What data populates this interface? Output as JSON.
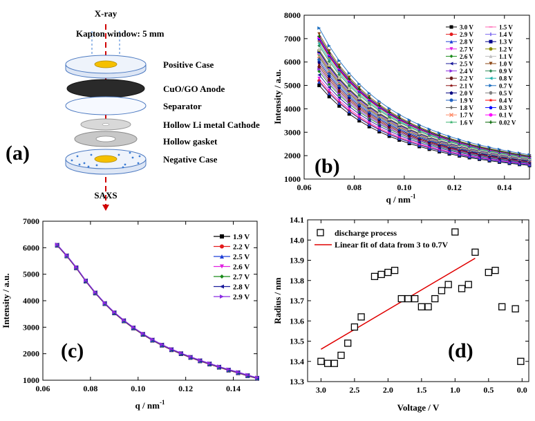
{
  "chart_data": [
    {
      "panel": "a",
      "type": "diagram",
      "panel_label": "(a)",
      "top_label": "X-ray",
      "window_label": "Kapton window: 5 mm",
      "bottom_label": "SAXS",
      "layers": [
        "Positive Case",
        "CuO/GO Anode",
        "Separator",
        "Hollow Li metal Cathode",
        "Hollow gasket",
        "Negative Case"
      ]
    },
    {
      "panel": "b",
      "type": "line",
      "panel_label": "(b)",
      "xlabel": "q / nm",
      "xlabel_sup": "-1",
      "ylabel": "Intensity / a.u.",
      "xlim": [
        0.06,
        0.15
      ],
      "ylim": [
        1000,
        8000
      ],
      "xticks": [
        0.06,
        0.08,
        0.1,
        0.12,
        0.14
      ],
      "xtick_labels": [
        "0.06",
        "0.08",
        "0.10",
        "0.12",
        "0.14"
      ],
      "yticks": [
        1000,
        2000,
        3000,
        4000,
        5000,
        6000,
        7000,
        8000
      ],
      "ytick_labels": [
        "1000",
        "2000",
        "3000",
        "4000",
        "5000",
        "6000",
        "7000",
        "8000"
      ],
      "x": [
        0.066,
        0.07,
        0.074,
        0.078,
        0.082,
        0.086,
        0.09,
        0.094,
        0.098,
        0.102,
        0.106,
        0.11,
        0.114,
        0.118,
        0.122,
        0.126,
        0.13,
        0.134,
        0.138,
        0.142,
        0.146,
        0.15
      ],
      "series": [
        {
          "name": "3.0 V",
          "i0": 5000,
          "color": "#000000",
          "marker": "square"
        },
        {
          "name": "2.9 V",
          "i0": 5200,
          "color": "#e41a1c",
          "marker": "circle"
        },
        {
          "name": "2.8 V",
          "i0": 5150,
          "color": "#1f3fd6",
          "marker": "triangle"
        },
        {
          "name": "2.7 V",
          "i0": 5300,
          "color": "#e020e0",
          "marker": "triangle-down"
        },
        {
          "name": "2.6 V",
          "i0": 5600,
          "color": "#1a8a1a",
          "marker": "diamond"
        },
        {
          "name": "2.5 V",
          "i0": 5450,
          "color": "#1a1a9a",
          "marker": "triangle-left"
        },
        {
          "name": "2.4 V",
          "i0": 5700,
          "color": "#8a2be2",
          "marker": "triangle-right"
        },
        {
          "name": "2.2 V",
          "i0": 5800,
          "color": "#6b1a1a",
          "marker": "hexagon"
        },
        {
          "name": "2.1 V",
          "i0": 5900,
          "color": "#8b1010",
          "marker": "star"
        },
        {
          "name": "2.0 V",
          "i0": 6000,
          "color": "#000080",
          "marker": "pentagon"
        },
        {
          "name": "1.9 V",
          "i0": 6100,
          "color": "#2060c0",
          "marker": "half-circle"
        },
        {
          "name": "1.8 V",
          "i0": 6200,
          "color": "#555555",
          "marker": "plus"
        },
        {
          "name": "1.7 V",
          "i0": 6250,
          "color": "#ff8c69",
          "marker": "x"
        },
        {
          "name": "1.6 V",
          "i0": 6300,
          "color": "#3cb371",
          "marker": "star6"
        },
        {
          "name": "1.5 V",
          "i0": 6350,
          "color": "#ff69b4",
          "marker": "dash"
        },
        {
          "name": "1.4 V",
          "i0": 6400,
          "color": "#7b68ee",
          "marker": "vline"
        },
        {
          "name": "1.3 V",
          "i0": 6450,
          "color": "#00008b",
          "marker": "square"
        },
        {
          "name": "1.2 V",
          "i0": 6500,
          "color": "#8b8b00",
          "marker": "circle"
        },
        {
          "name": "1.1 V",
          "i0": 6550,
          "color": "#c0c0c0",
          "marker": "triangle"
        },
        {
          "name": "1.0 V",
          "i0": 7200,
          "color": "#8b4513",
          "marker": "triangle-down"
        },
        {
          "name": "0.9 V",
          "i0": 6700,
          "color": "#2e8b57",
          "marker": "diamond"
        },
        {
          "name": "0.8 V",
          "i0": 6800,
          "color": "#20b2aa",
          "marker": "triangle-left"
        },
        {
          "name": "0.7 V",
          "i0": 7450,
          "color": "#1e70c0",
          "marker": "triangle-right"
        },
        {
          "name": "0.5 V",
          "i0": 6900,
          "color": "#808080",
          "marker": "hexagon"
        },
        {
          "name": "0.4 V",
          "i0": 6950,
          "color": "#ff0000",
          "marker": "star"
        },
        {
          "name": "0.3 V",
          "i0": 7000,
          "color": "#0000ff",
          "marker": "pentagon"
        },
        {
          "name": "0.1 V",
          "i0": 7050,
          "color": "#ff00ff",
          "marker": "circle"
        },
        {
          "name": "0.02 V",
          "i0": 7100,
          "color": "#006400",
          "marker": "plus"
        }
      ]
    },
    {
      "panel": "c",
      "type": "line",
      "panel_label": "(c)",
      "xlabel": "q / nm",
      "xlabel_sup": "-1",
      "ylabel": "Intensity / a.u.",
      "xlim": [
        0.06,
        0.15
      ],
      "ylim": [
        1000,
        7000
      ],
      "xticks": [
        0.06,
        0.08,
        0.1,
        0.12,
        0.14
      ],
      "xtick_labels": [
        "0.06",
        "0.08",
        "0.10",
        "0.12",
        "0.14"
      ],
      "yticks": [
        1000,
        2000,
        3000,
        4000,
        5000,
        6000,
        7000
      ],
      "ytick_labels": [
        "1000",
        "2000",
        "3000",
        "4000",
        "5000",
        "6000",
        "7000"
      ],
      "x": [
        0.066,
        0.07,
        0.074,
        0.078,
        0.082,
        0.086,
        0.09,
        0.094,
        0.098,
        0.102,
        0.106,
        0.11,
        0.114,
        0.118,
        0.122,
        0.126,
        0.13,
        0.134,
        0.138,
        0.142,
        0.146,
        0.15
      ],
      "y": [
        6100,
        5700,
        5250,
        4750,
        4300,
        3900,
        3550,
        3250,
        2980,
        2740,
        2520,
        2330,
        2160,
        2010,
        1870,
        1740,
        1620,
        1500,
        1390,
        1290,
        1180,
        1080
      ],
      "series": [
        {
          "name": "1.9 V",
          "color": "#000000",
          "marker": "square"
        },
        {
          "name": "2.2 V",
          "color": "#e41a1c",
          "marker": "circle"
        },
        {
          "name": "2.5 V",
          "color": "#1f3fd6",
          "marker": "triangle"
        },
        {
          "name": "2.6 V",
          "color": "#e020e0",
          "marker": "triangle-down"
        },
        {
          "name": "2.7 V",
          "color": "#1a8a1a",
          "marker": "diamond"
        },
        {
          "name": "2.8 V",
          "color": "#1a1a9a",
          "marker": "triangle-left"
        },
        {
          "name": "2.9 V",
          "color": "#8a2be2",
          "marker": "triangle-right"
        }
      ]
    },
    {
      "panel": "d",
      "type": "scatter",
      "panel_label": "(d)",
      "xlabel": "Voltage / V",
      "ylabel": "Radius / nm",
      "xlim": [
        3.2,
        -0.1
      ],
      "ylim": [
        13.3,
        14.1
      ],
      "xticks": [
        3.0,
        2.5,
        2.0,
        1.5,
        1.0,
        0.5,
        0.0
      ],
      "xtick_labels": [
        "3.0",
        "2.5",
        "2.0",
        "1.5",
        "1.0",
        "0.5",
        "0.0"
      ],
      "yticks": [
        13.3,
        13.4,
        13.5,
        13.6,
        13.7,
        13.8,
        13.9,
        14.0,
        14.1
      ],
      "ytick_labels": [
        "13.3",
        "13.4",
        "13.5",
        "13.6",
        "13.7",
        "13.8",
        "13.9",
        "14.0",
        "14.1"
      ],
      "points": [
        [
          3.0,
          13.4
        ],
        [
          2.9,
          13.39
        ],
        [
          2.8,
          13.39
        ],
        [
          2.7,
          13.43
        ],
        [
          2.6,
          13.49
        ],
        [
          2.5,
          13.57
        ],
        [
          2.4,
          13.62
        ],
        [
          2.2,
          13.82
        ],
        [
          2.1,
          13.83
        ],
        [
          2.0,
          13.84
        ],
        [
          1.9,
          13.85
        ],
        [
          1.8,
          13.71
        ],
        [
          1.7,
          13.71
        ],
        [
          1.6,
          13.71
        ],
        [
          1.5,
          13.67
        ],
        [
          1.4,
          13.67
        ],
        [
          1.3,
          13.71
        ],
        [
          1.2,
          13.75
        ],
        [
          1.1,
          13.78
        ],
        [
          1.0,
          14.04
        ],
        [
          0.9,
          13.76
        ],
        [
          0.8,
          13.78
        ],
        [
          0.7,
          13.94
        ],
        [
          0.5,
          13.84
        ],
        [
          0.4,
          13.85
        ],
        [
          0.3,
          13.67
        ],
        [
          0.1,
          13.66
        ],
        [
          0.02,
          13.4
        ]
      ],
      "fit": {
        "x": [
          3.0,
          0.7
        ],
        "y": [
          13.46,
          13.91
        ],
        "color": "#e00000"
      },
      "legend": [
        "discharge process",
        "Linear fit of data from 3 to 0.7V"
      ]
    }
  ]
}
